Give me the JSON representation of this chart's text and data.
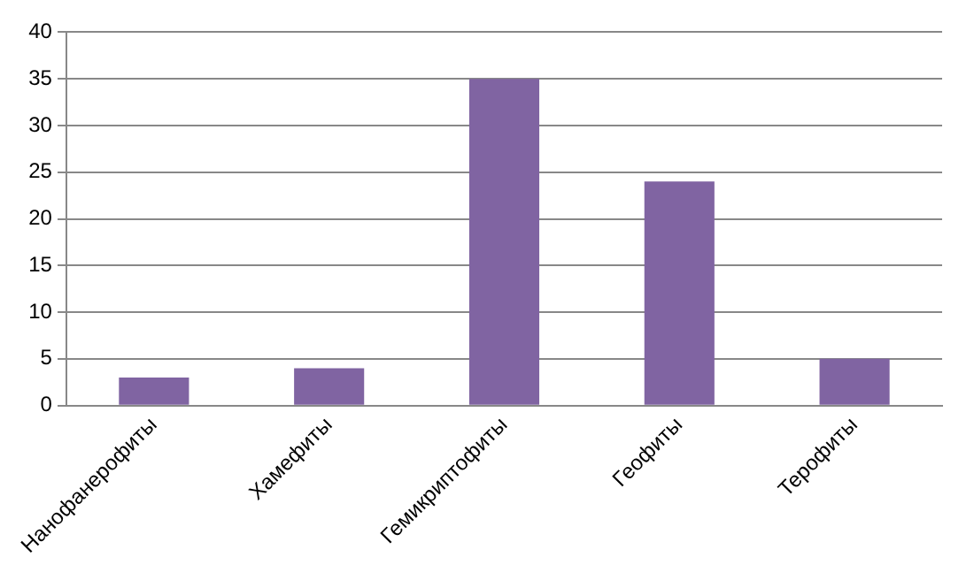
{
  "chart_data": {
    "type": "bar",
    "categories": [
      "Нанофанерофиты",
      "Хамефиты",
      "Гемикриптофиты",
      "Геофиты",
      "Терофиты"
    ],
    "values": [
      3,
      4,
      35,
      24,
      5
    ],
    "color": "#8064a2",
    "ylim": [
      0,
      40
    ],
    "yticks": [
      0,
      5,
      10,
      15,
      20,
      25,
      30,
      35,
      40
    ],
    "grid": "y",
    "legend": false
  }
}
